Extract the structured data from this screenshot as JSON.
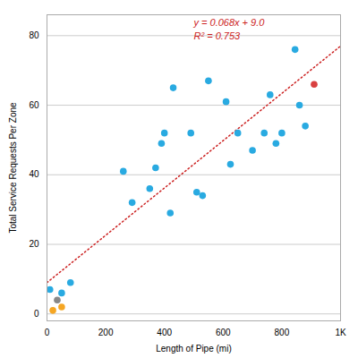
{
  "chart_data": {
    "type": "scatter",
    "xlabel": "Length of Pipe (mi)",
    "ylabel": "Total Service Requests Per Zone",
    "xlim": [
      0,
      1000
    ],
    "ylim": [
      -2,
      86
    ],
    "xticks": [
      0,
      200,
      400,
      600,
      800,
      {
        "value": 1000,
        "label": "1K"
      }
    ],
    "yticks": [
      0,
      20,
      40,
      60,
      80
    ],
    "grid": true,
    "series": [
      {
        "type": "scatter",
        "color": "#29aae1",
        "x": [
          10,
          50,
          80,
          260,
          290,
          350,
          370,
          390,
          400,
          420,
          430,
          490,
          510,
          530,
          550,
          610,
          625,
          650,
          700,
          740,
          760,
          780,
          800,
          845,
          860,
          880
        ],
        "values": [
          7,
          6,
          9,
          41,
          32,
          36,
          42,
          49,
          52,
          29,
          65,
          52,
          35,
          34,
          67,
          61,
          43,
          52,
          47,
          52,
          63,
          49,
          52,
          76,
          60,
          54
        ]
      },
      {
        "type": "scatter",
        "color": "#f5a623",
        "x": [
          20,
          50
        ],
        "values": [
          1,
          2
        ]
      },
      {
        "type": "scatter",
        "color": "#888888",
        "x": [
          35
        ],
        "values": [
          4
        ]
      },
      {
        "type": "scatter",
        "color": "#d94040",
        "x": [
          910
        ],
        "values": [
          66
        ]
      },
      {
        "type": "line",
        "color": "#cc2222",
        "line_style": "dotted",
        "x": [
          0,
          1000
        ],
        "values": [
          9.0,
          77.0
        ]
      }
    ],
    "annotations": [
      {
        "text": "y = 0.068x + 9.0",
        "color": "#cc2222"
      },
      {
        "text": "R² = 0.753",
        "color": "#cc2222"
      }
    ]
  }
}
